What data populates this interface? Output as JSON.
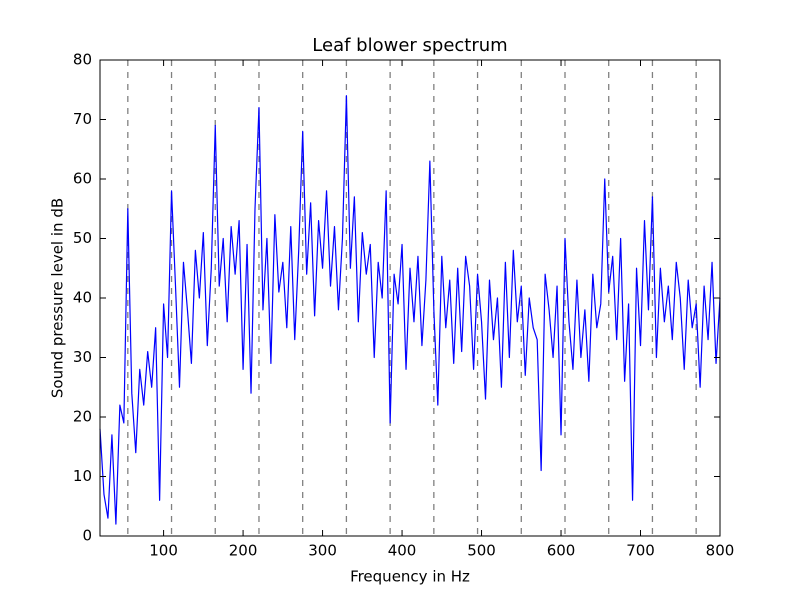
{
  "chart_data": {
    "type": "line",
    "title": "Leaf blower spectrum",
    "x_label": "Frequency in Hz",
    "y_label": "Sound pressure level in dB",
    "color": "#0000ff",
    "vline_color": "#808080",
    "x": [
      20,
      25,
      30,
      35,
      40,
      45,
      50,
      55,
      60,
      65,
      70,
      75,
      80,
      85,
      90,
      95,
      100,
      105,
      110,
      115,
      120,
      125,
      130,
      135,
      140,
      145,
      150,
      155,
      160,
      165,
      170,
      175,
      180,
      185,
      190,
      195,
      200,
      205,
      210,
      215,
      220,
      225,
      230,
      235,
      240,
      245,
      250,
      255,
      260,
      265,
      270,
      275,
      280,
      285,
      290,
      295,
      300,
      305,
      310,
      315,
      320,
      325,
      330,
      335,
      340,
      345,
      350,
      355,
      360,
      365,
      370,
      375,
      380,
      385,
      390,
      395,
      400,
      405,
      410,
      415,
      420,
      425,
      430,
      435,
      440,
      445,
      450,
      455,
      460,
      465,
      470,
      475,
      480,
      485,
      490,
      495,
      500,
      505,
      510,
      515,
      520,
      525,
      530,
      535,
      540,
      545,
      550,
      555,
      560,
      565,
      570,
      575,
      580,
      585,
      590,
      595,
      600,
      605,
      610,
      615,
      620,
      625,
      630,
      635,
      640,
      645,
      650,
      655,
      660,
      665,
      670,
      675,
      680,
      685,
      690,
      695,
      700,
      705,
      710,
      715,
      720,
      725,
      730,
      735,
      740,
      745,
      750,
      755,
      760,
      765,
      770,
      775,
      780,
      785,
      790,
      795,
      800
    ],
    "values": [
      18,
      7,
      3,
      17,
      2,
      22,
      19,
      55,
      24,
      14,
      28,
      22,
      31,
      25,
      35,
      6,
      39,
      30,
      58,
      42,
      25,
      46,
      38,
      29,
      48,
      40,
      51,
      32,
      45,
      69,
      42,
      50,
      36,
      52,
      44,
      53,
      28,
      49,
      24,
      55,
      72,
      38,
      50,
      29,
      54,
      41,
      46,
      35,
      52,
      33,
      48,
      68,
      44,
      56,
      37,
      53,
      45,
      58,
      42,
      52,
      38,
      50,
      74,
      45,
      57,
      36,
      51,
      44,
      49,
      30,
      46,
      40,
      58,
      19,
      44,
      39,
      49,
      28,
      45,
      36,
      47,
      32,
      43,
      63,
      38,
      22,
      47,
      35,
      43,
      29,
      45,
      31,
      47,
      42,
      28,
      44,
      36,
      23,
      43,
      33,
      40,
      25,
      46,
      30,
      48,
      36,
      42,
      27,
      40,
      35,
      33,
      11,
      44,
      38,
      30,
      42,
      17,
      50,
      36,
      28,
      43,
      30,
      38,
      26,
      44,
      35,
      39,
      60,
      41,
      47,
      33,
      50,
      26,
      39,
      6,
      45,
      32,
      53,
      38,
      57,
      30,
      45,
      36,
      42,
      33,
      46,
      40,
      28,
      43,
      35,
      39,
      25,
      42,
      33,
      46,
      29,
      40
    ],
    "vlines": [
      55,
      110,
      165,
      220,
      275,
      330,
      385,
      440,
      495,
      550,
      605,
      660,
      715,
      770
    ],
    "xlim": [
      20,
      800
    ],
    "ylim": [
      0,
      80
    ],
    "xticks": [
      100,
      200,
      300,
      400,
      500,
      600,
      700,
      800
    ],
    "yticks": [
      0,
      10,
      20,
      30,
      40,
      50,
      60,
      70,
      80
    ]
  }
}
